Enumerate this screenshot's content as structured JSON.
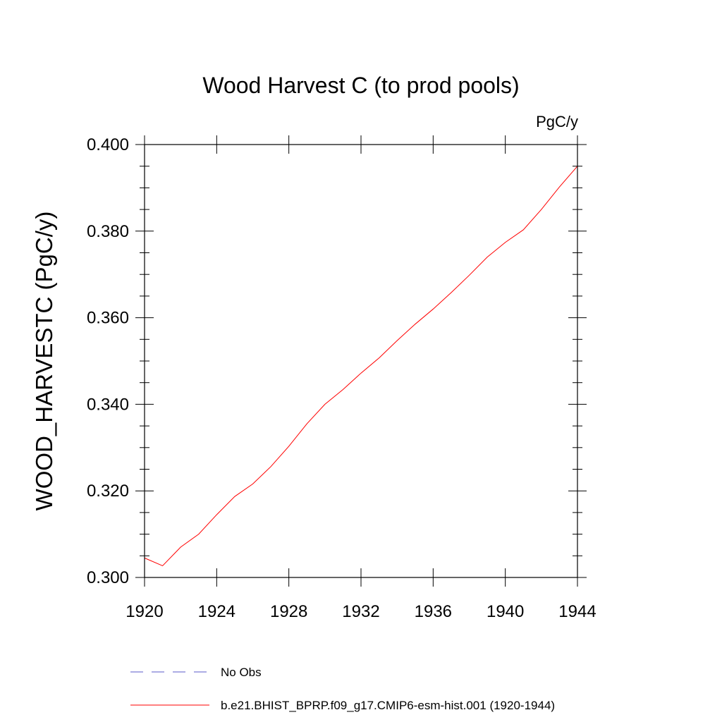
{
  "chart_data": {
    "type": "line",
    "title": "Wood Harvest C (to prod pools)",
    "units_label": "PgC/y",
    "ylabel": "WOOD_HARVESTC  (PgC/y)",
    "xlabel": "",
    "xlim": [
      1920,
      1944
    ],
    "ylim": [
      0.3,
      0.4
    ],
    "x_ticks": [
      "1920",
      "1924",
      "1928",
      "1932",
      "1936",
      "1940",
      "1944"
    ],
    "y_ticks": [
      "0.300",
      "0.320",
      "0.340",
      "0.360",
      "0.380",
      "0.400"
    ],
    "grid": false,
    "legend_position": "bottom",
    "series": [
      {
        "name": "No Obs",
        "color": "#5a5ac8",
        "style": "dashed",
        "x": [],
        "y": []
      },
      {
        "name": "b.e21.BHIST_BPRP.f09_g17.CMIP6-esm-hist.001 (1920-1944)",
        "color": "#ff0000",
        "style": "solid",
        "x": [
          1920,
          1921,
          1922,
          1923,
          1924,
          1925,
          1926,
          1927,
          1928,
          1929,
          1930,
          1931,
          1932,
          1933,
          1934,
          1935,
          1936,
          1937,
          1938,
          1939,
          1940,
          1941,
          1942,
          1943,
          1944
        ],
        "y": [
          0.3045,
          0.3027,
          0.307,
          0.31,
          0.3145,
          0.3187,
          0.3216,
          0.3256,
          0.3303,
          0.3355,
          0.34,
          0.3434,
          0.3472,
          0.3507,
          0.3547,
          0.3585,
          0.362,
          0.3658,
          0.3698,
          0.374,
          0.3774,
          0.3803,
          0.385,
          0.3902,
          0.395
        ]
      }
    ]
  }
}
